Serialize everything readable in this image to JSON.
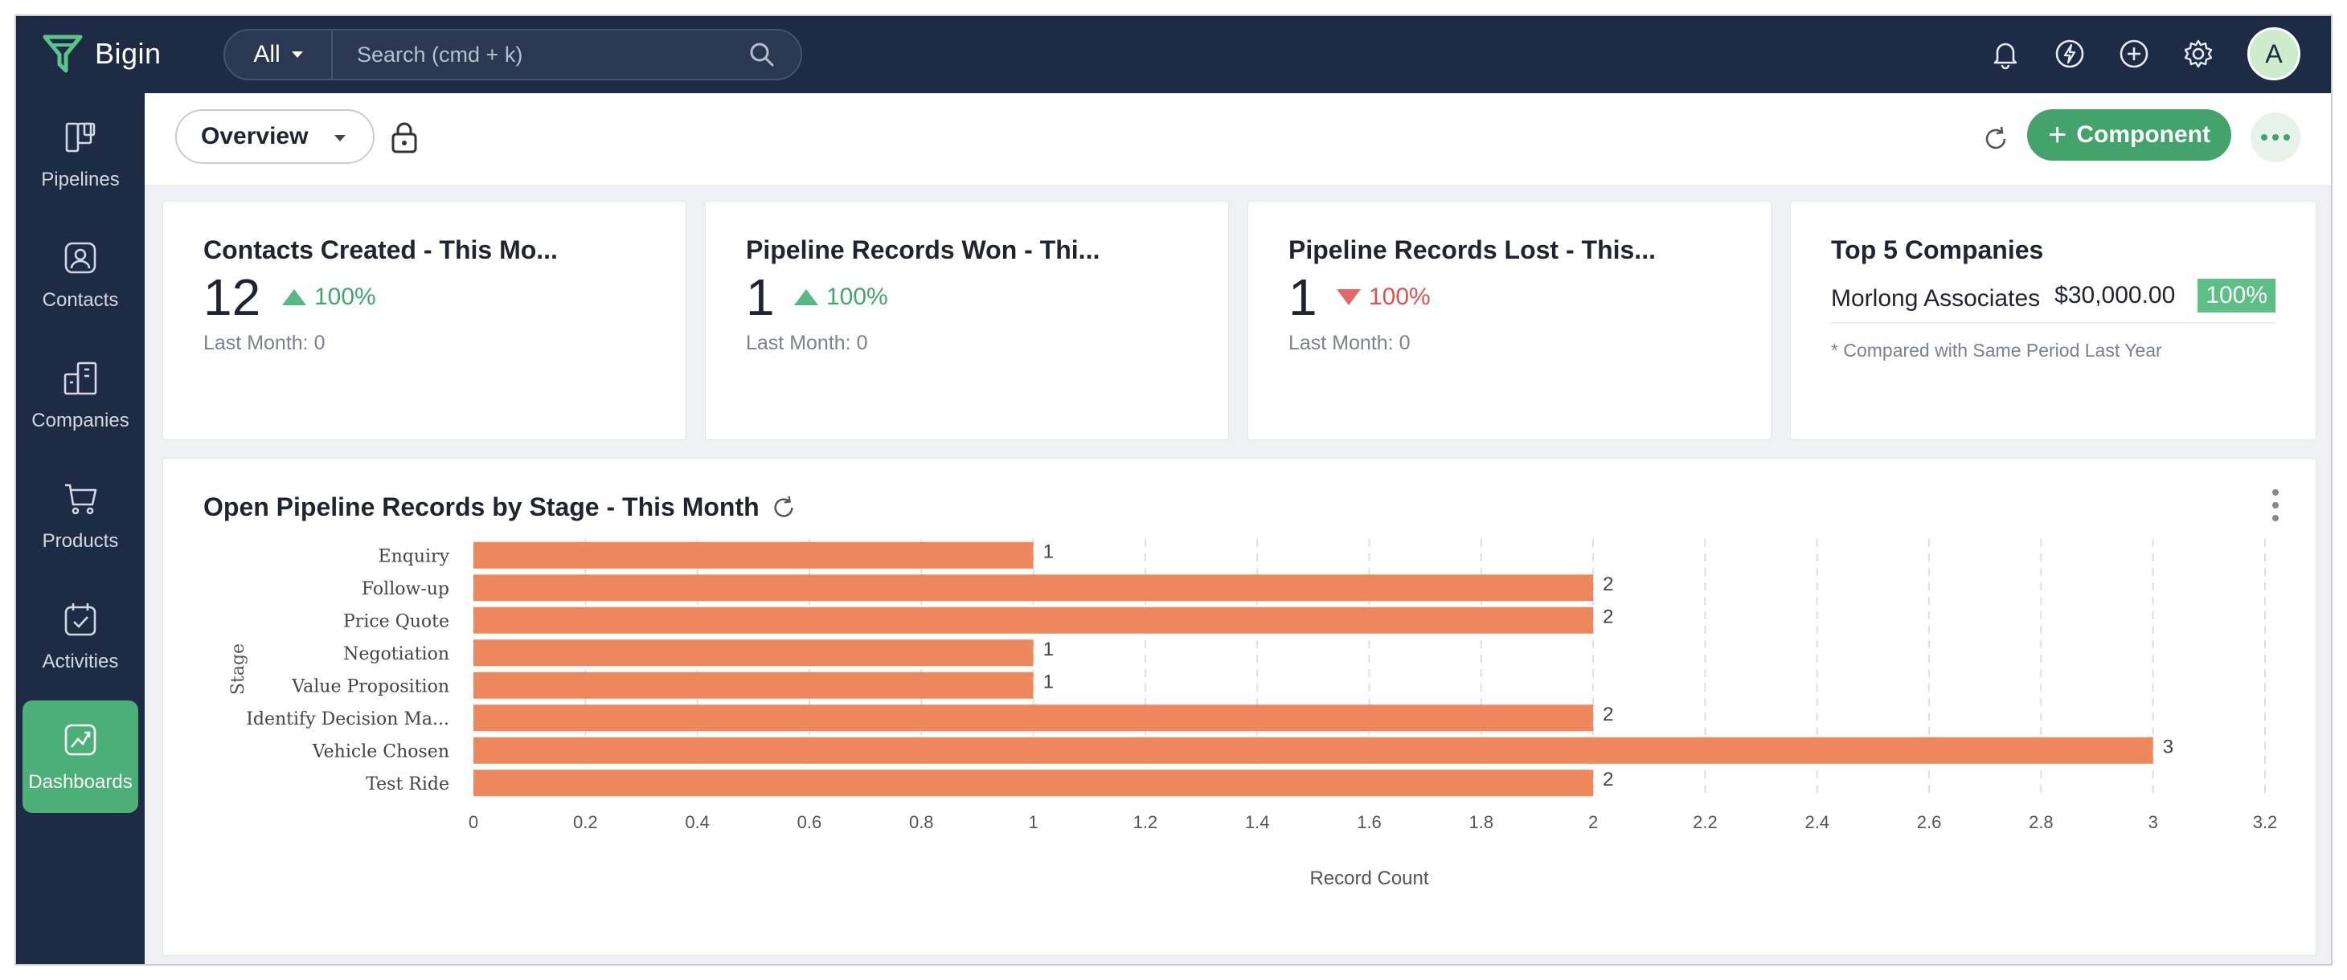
{
  "app": {
    "name": "Bigin"
  },
  "search": {
    "scope": "All",
    "placeholder": "Search (cmd + k)"
  },
  "topbar_icons": [
    "bell-icon",
    "lightning-icon",
    "add-icon",
    "settings-icon"
  ],
  "user": {
    "initial": "A",
    "avatar_color": "#cdeccc"
  },
  "sidebar": {
    "items": [
      {
        "label": "Pipelines",
        "icon": "pipelines-icon"
      },
      {
        "label": "Contacts",
        "icon": "contacts-icon"
      },
      {
        "label": "Companies",
        "icon": "companies-icon"
      },
      {
        "label": "Products",
        "icon": "cart-icon"
      },
      {
        "label": "Activities",
        "icon": "calendar-check-icon"
      },
      {
        "label": "Dashboards",
        "icon": "dashboard-icon",
        "active": true
      }
    ]
  },
  "toolbar": {
    "view": "Overview",
    "component_label": "Component"
  },
  "kpis": [
    {
      "title": "Contacts Created - This Mo...",
      "value": "12",
      "delta": "100%",
      "direction": "up",
      "last": "Last Month: 0"
    },
    {
      "title": "Pipeline Records Won - Thi...",
      "value": "1",
      "delta": "100%",
      "direction": "up",
      "last": "Last Month: 0"
    },
    {
      "title": "Pipeline Records Lost - This...",
      "value": "1",
      "delta": "100%",
      "direction": "down",
      "last": "Last Month: 0"
    }
  ],
  "top5": {
    "title": "Top 5 Companies",
    "rows": [
      {
        "name": "Morlong Associates",
        "amount": "$30,000.00",
        "percent": "100%"
      }
    ],
    "note": "* Compared with Same Period Last Year"
  },
  "colors": {
    "accent": "#44a36b",
    "bar": "#ef875c",
    "nav_bg": "#1e2b44",
    "up": "#3fa86a",
    "down": "#d9534f"
  },
  "chart_data": {
    "type": "bar",
    "orientation": "horizontal",
    "title": "Open Pipeline Records by Stage - This Month",
    "categories": [
      "Enquiry",
      "Follow-up",
      "Price Quote",
      "Negotiation",
      "Value Proposition",
      "Identify Decision Ma...",
      "Vehicle Chosen",
      "Test Ride"
    ],
    "values": [
      1,
      2,
      2,
      1,
      1,
      2,
      3,
      2
    ],
    "xlabel": "Record Count",
    "ylabel": "Stage",
    "xlim": [
      0,
      3.2
    ],
    "ticks": [
      "0",
      "0.2",
      "0.4",
      "0.6",
      "0.8",
      "1",
      "1.2",
      "1.4",
      "1.6",
      "1.8",
      "2",
      "2.2",
      "2.4",
      "2.6",
      "2.8",
      "3",
      "3.2"
    ],
    "grid": "vertical dashed",
    "legend": "none"
  }
}
